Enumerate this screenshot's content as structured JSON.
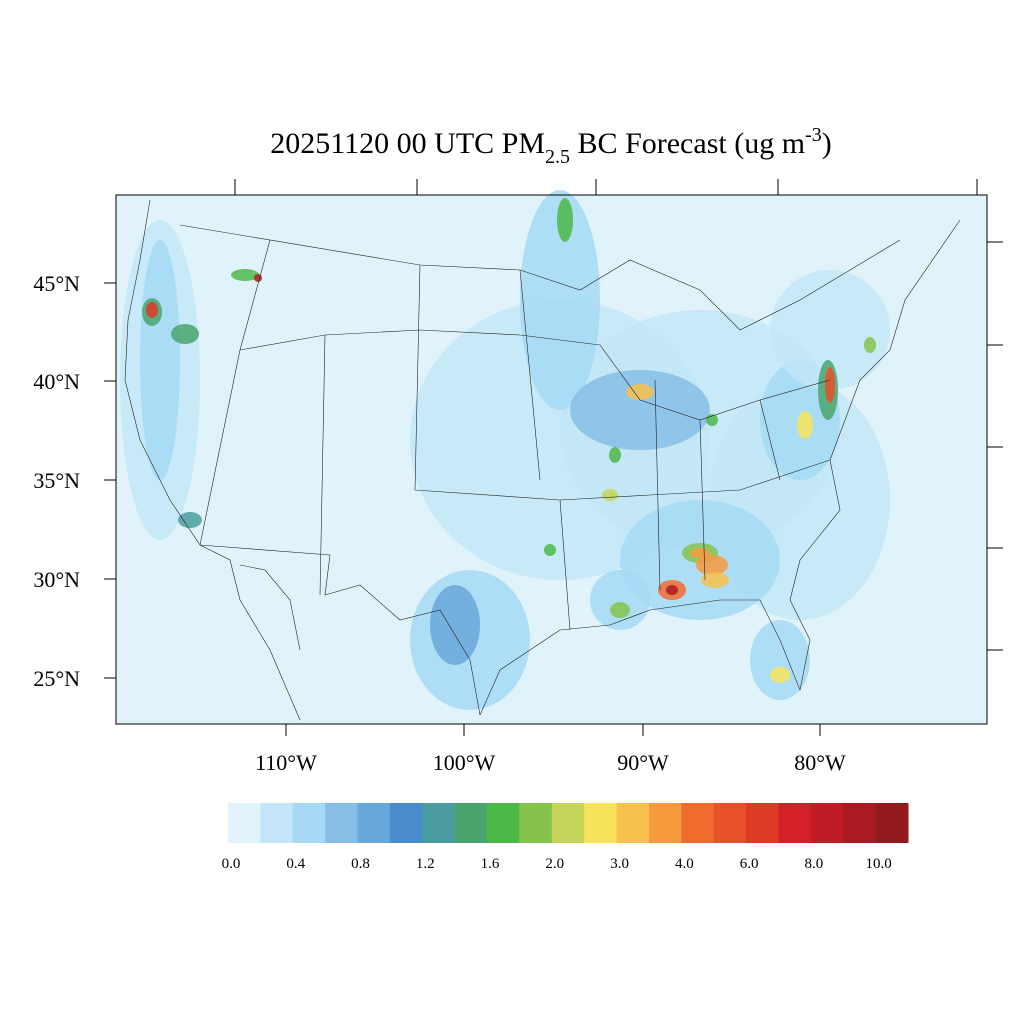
{
  "title": {
    "parts": [
      "20251120 00 UTC PM",
      "2.5",
      " BC Forecast (ug m",
      "-3",
      ")"
    ]
  },
  "latitude_labels": [
    "45°N",
    "40°N",
    "35°N",
    "30°N",
    "25°N"
  ],
  "longitude_labels": [
    "110°W",
    "100°W",
    "90°W",
    "80°W"
  ],
  "colorbar": {
    "colors": [
      "#e0f3fb",
      "#c2e6f7",
      "#a5d9f5",
      "#86bee6",
      "#68a8d9",
      "#4a8ccb",
      "#4a9ca0",
      "#4aa46c",
      "#4cb848",
      "#86c34c",
      "#c4d55a",
      "#f8e45a",
      "#f8c04c",
      "#f69a3e",
      "#f26b2e",
      "#e8502a",
      "#de3a26",
      "#d42029",
      "#bf1c26",
      "#aa1a22",
      "#921a1c"
    ],
    "labels": [
      "0.0",
      "0.4",
      "0.8",
      "1.2",
      "1.6",
      "2.0",
      "3.0",
      "4.0",
      "6.0",
      "8.0",
      "10.0"
    ]
  }
}
